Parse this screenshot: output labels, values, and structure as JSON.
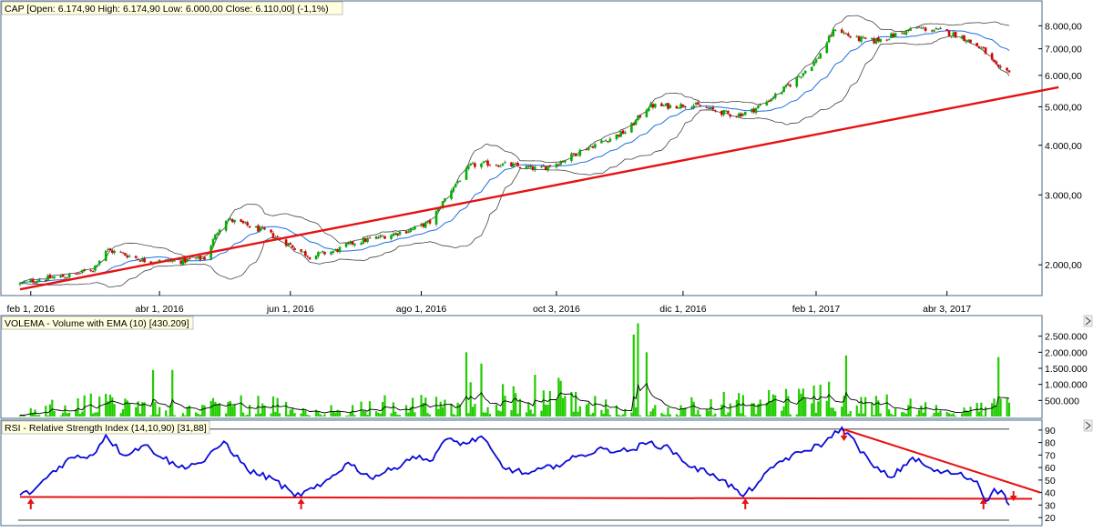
{
  "colors": {
    "panel_border": "#4a6a8a",
    "candle_up": "#00b000",
    "candle_down": "#dd0000",
    "bollinger": "#444444",
    "sma": "#1e6fe0",
    "trendline": "#e81010",
    "volume_bar": "#22cc00",
    "volume_ema": "#000000",
    "rsi_line": "#0a0ad8",
    "rsi_guide": "#e81010",
    "arrow": "#e81010",
    "label_bg": "#ffffe0"
  },
  "panels": {
    "price": {
      "header": "CAP [Open: 6.174,90  High: 6.174,90  Low: 6.000,00  Close: 6.110,00] (-1,1%)"
    },
    "volume": {
      "header": "VOLEMA - Volume with EMA (10) [430.209]"
    },
    "rsi": {
      "header": "RSI - Relative Strength Index (14,10,90) [31,88]"
    }
  },
  "chart_data": [
    {
      "type": "candlestick",
      "series_name": "CAP",
      "scale": "log",
      "ylim": [
        1700,
        9000
      ],
      "yticks": [
        2000,
        3000,
        4000,
        5000,
        6000,
        7000,
        8000
      ],
      "ytick_labels": [
        "2.000,00",
        "3.000,00",
        "4.000,00",
        "5.000,00",
        "6.000,00",
        "7.000,00",
        "8.000,00"
      ],
      "xticks": [
        {
          "date": "2016-02-01",
          "label": "feb 1, 2016"
        },
        {
          "date": "2016-04-01",
          "label": "abr 1, 2016"
        },
        {
          "date": "2016-06-01",
          "label": "jun 1, 2016"
        },
        {
          "date": "2016-08-01",
          "label": "ago 1, 2016"
        },
        {
          "date": "2016-10-03",
          "label": "oct 3, 2016"
        },
        {
          "date": "2016-12-01",
          "label": "dic 1, 2016"
        },
        {
          "date": "2017-02-01",
          "label": "feb 1, 2017"
        },
        {
          "date": "2017-04-03",
          "label": "abr 3, 2017"
        }
      ],
      "date_range": [
        "2016-01-27",
        "2017-05-02"
      ],
      "last_bar": {
        "open": 6174.9,
        "high": 6174.9,
        "low": 6000.0,
        "close": 6110.0,
        "change_pct": -1.1
      },
      "close_path": [
        {
          "date": "2016-01-27",
          "close": 1790
        },
        {
          "date": "2016-02-05",
          "close": 1840
        },
        {
          "date": "2016-02-20",
          "close": 1880
        },
        {
          "date": "2016-03-01",
          "close": 1950
        },
        {
          "date": "2016-03-07",
          "close": 2180
        },
        {
          "date": "2016-03-15",
          "close": 2130
        },
        {
          "date": "2016-03-25",
          "close": 2050
        },
        {
          "date": "2016-04-10",
          "close": 2040
        },
        {
          "date": "2016-04-22",
          "close": 2080
        },
        {
          "date": "2016-05-01",
          "close": 2620
        },
        {
          "date": "2016-05-10",
          "close": 2530
        },
        {
          "date": "2016-05-20",
          "close": 2430
        },
        {
          "date": "2016-06-01",
          "close": 2240
        },
        {
          "date": "2016-06-10",
          "close": 2100
        },
        {
          "date": "2016-06-22",
          "close": 2170
        },
        {
          "date": "2016-07-01",
          "close": 2280
        },
        {
          "date": "2016-07-10",
          "close": 2330
        },
        {
          "date": "2016-07-20",
          "close": 2400
        },
        {
          "date": "2016-07-28",
          "close": 2460
        },
        {
          "date": "2016-08-05",
          "close": 2560
        },
        {
          "date": "2016-08-15",
          "close": 3100
        },
        {
          "date": "2016-08-24",
          "close": 3550
        },
        {
          "date": "2016-09-01",
          "close": 3600
        },
        {
          "date": "2016-09-10",
          "close": 3570
        },
        {
          "date": "2016-09-25",
          "close": 3480
        },
        {
          "date": "2016-10-05",
          "close": 3640
        },
        {
          "date": "2016-10-15",
          "close": 3900
        },
        {
          "date": "2016-10-25",
          "close": 4100
        },
        {
          "date": "2016-11-05",
          "close": 4350
        },
        {
          "date": "2016-11-15",
          "close": 5030
        },
        {
          "date": "2016-11-25",
          "close": 5020
        },
        {
          "date": "2016-12-05",
          "close": 5070
        },
        {
          "date": "2016-12-15",
          "close": 4900
        },
        {
          "date": "2016-12-25",
          "close": 4760
        },
        {
          "date": "2017-01-01",
          "close": 4850
        },
        {
          "date": "2017-01-10",
          "close": 5200
        },
        {
          "date": "2017-01-20",
          "close": 5700
        },
        {
          "date": "2017-02-01",
          "close": 6550
        },
        {
          "date": "2017-02-10",
          "close": 7900
        },
        {
          "date": "2017-02-18",
          "close": 7450
        },
        {
          "date": "2017-02-28",
          "close": 7320
        },
        {
          "date": "2017-03-10",
          "close": 7600
        },
        {
          "date": "2017-03-20",
          "close": 7900
        },
        {
          "date": "2017-04-01",
          "close": 7750
        },
        {
          "date": "2017-04-10",
          "close": 7500
        },
        {
          "date": "2017-04-20",
          "close": 6950
        },
        {
          "date": "2017-04-27",
          "close": 6200
        },
        {
          "date": "2017-05-02",
          "close": 6110
        }
      ],
      "trendline": [
        {
          "date": "2016-01-27",
          "value": 1735
        },
        {
          "date": "2017-05-25",
          "value": 5600
        }
      ]
    },
    {
      "type": "bar",
      "series_name": "Volume",
      "overlay": "EMA (10)",
      "last_ema": 430209,
      "ylim": [
        0,
        3000000
      ],
      "yticks": [
        500000,
        1000000,
        1500000,
        2000000,
        2500000
      ],
      "ytick_labels": [
        "500.000",
        "1.000.000",
        "1.500.000",
        "2.000.000",
        "2.500.000"
      ],
      "notable_spikes": [
        {
          "date": "2016-03-29",
          "value": 1450000
        },
        {
          "date": "2016-03-30",
          "value": 450000
        },
        {
          "date": "2016-04-07",
          "value": 1450000
        },
        {
          "date": "2016-08-22",
          "value": 2000000
        },
        {
          "date": "2016-08-29",
          "value": 1650000
        },
        {
          "date": "2016-11-10",
          "value": 2900000
        },
        {
          "date": "2016-11-08",
          "value": 2550000
        },
        {
          "date": "2016-11-14",
          "value": 2000000
        },
        {
          "date": "2017-02-15",
          "value": 1900000
        },
        {
          "date": "2017-04-27",
          "value": 1850000
        }
      ]
    },
    {
      "type": "line",
      "series_name": "RSI",
      "params": "14,10,90",
      "last_value": 31.88,
      "ylim": [
        15,
        95
      ],
      "yticks": [
        20,
        30,
        40,
        50,
        60,
        70,
        80,
        90
      ],
      "upper_band": 90,
      "lower_band": 10,
      "points": [
        {
          "date": "2016-01-27",
          "value": 38
        },
        {
          "date": "2016-02-02",
          "value": 41
        },
        {
          "date": "2016-02-10",
          "value": 55
        },
        {
          "date": "2016-02-20",
          "value": 68
        },
        {
          "date": "2016-03-01",
          "value": 70
        },
        {
          "date": "2016-03-07",
          "value": 86
        },
        {
          "date": "2016-03-15",
          "value": 70
        },
        {
          "date": "2016-03-25",
          "value": 78
        },
        {
          "date": "2016-04-10",
          "value": 60
        },
        {
          "date": "2016-04-22",
          "value": 65
        },
        {
          "date": "2016-05-01",
          "value": 81
        },
        {
          "date": "2016-05-12",
          "value": 58
        },
        {
          "date": "2016-05-25",
          "value": 50
        },
        {
          "date": "2016-06-03",
          "value": 37
        },
        {
          "date": "2016-06-15",
          "value": 45
        },
        {
          "date": "2016-06-28",
          "value": 64
        },
        {
          "date": "2016-07-08",
          "value": 52
        },
        {
          "date": "2016-07-18",
          "value": 58
        },
        {
          "date": "2016-07-28",
          "value": 69
        },
        {
          "date": "2016-08-05",
          "value": 65
        },
        {
          "date": "2016-08-12",
          "value": 82
        },
        {
          "date": "2016-08-22",
          "value": 79
        },
        {
          "date": "2016-08-29",
          "value": 85
        },
        {
          "date": "2016-09-08",
          "value": 60
        },
        {
          "date": "2016-09-20",
          "value": 55
        },
        {
          "date": "2016-10-03",
          "value": 62
        },
        {
          "date": "2016-10-15",
          "value": 70
        },
        {
          "date": "2016-10-25",
          "value": 75
        },
        {
          "date": "2016-11-05",
          "value": 73
        },
        {
          "date": "2016-11-15",
          "value": 80
        },
        {
          "date": "2016-11-25",
          "value": 75
        },
        {
          "date": "2016-12-05",
          "value": 60
        },
        {
          "date": "2016-12-15",
          "value": 55
        },
        {
          "date": "2016-12-25",
          "value": 43
        },
        {
          "date": "2016-12-29",
          "value": 37
        },
        {
          "date": "2017-01-05",
          "value": 48
        },
        {
          "date": "2017-01-15",
          "value": 65
        },
        {
          "date": "2017-01-25",
          "value": 72
        },
        {
          "date": "2017-02-05",
          "value": 80
        },
        {
          "date": "2017-02-13",
          "value": 92
        },
        {
          "date": "2017-02-20",
          "value": 78
        },
        {
          "date": "2017-02-28",
          "value": 60
        },
        {
          "date": "2017-03-08",
          "value": 52
        },
        {
          "date": "2017-03-18",
          "value": 68
        },
        {
          "date": "2017-03-28",
          "value": 57
        },
        {
          "date": "2017-04-08",
          "value": 55
        },
        {
          "date": "2017-04-17",
          "value": 49
        },
        {
          "date": "2017-04-21",
          "value": 33
        },
        {
          "date": "2017-04-25",
          "value": 43
        },
        {
          "date": "2017-04-30",
          "value": 38
        },
        {
          "date": "2017-05-02",
          "value": 30
        }
      ],
      "support_line": [
        {
          "date": "2016-01-27",
          "value": 36.5
        },
        {
          "date": "2017-05-05",
          "value": 35
        }
      ],
      "resistance_line": [
        {
          "date": "2017-02-13",
          "value": 91
        },
        {
          "date": "2017-05-08",
          "value": 40
        }
      ],
      "signal_arrows": [
        {
          "date": "2016-02-01",
          "direction": "up"
        },
        {
          "date": "2016-06-06",
          "direction": "up"
        },
        {
          "date": "2016-12-30",
          "direction": "up"
        },
        {
          "date": "2017-04-20",
          "direction": "up"
        },
        {
          "date": "2017-02-14",
          "direction": "down"
        },
        {
          "date": "2017-05-04",
          "direction": "down"
        }
      ]
    }
  ]
}
